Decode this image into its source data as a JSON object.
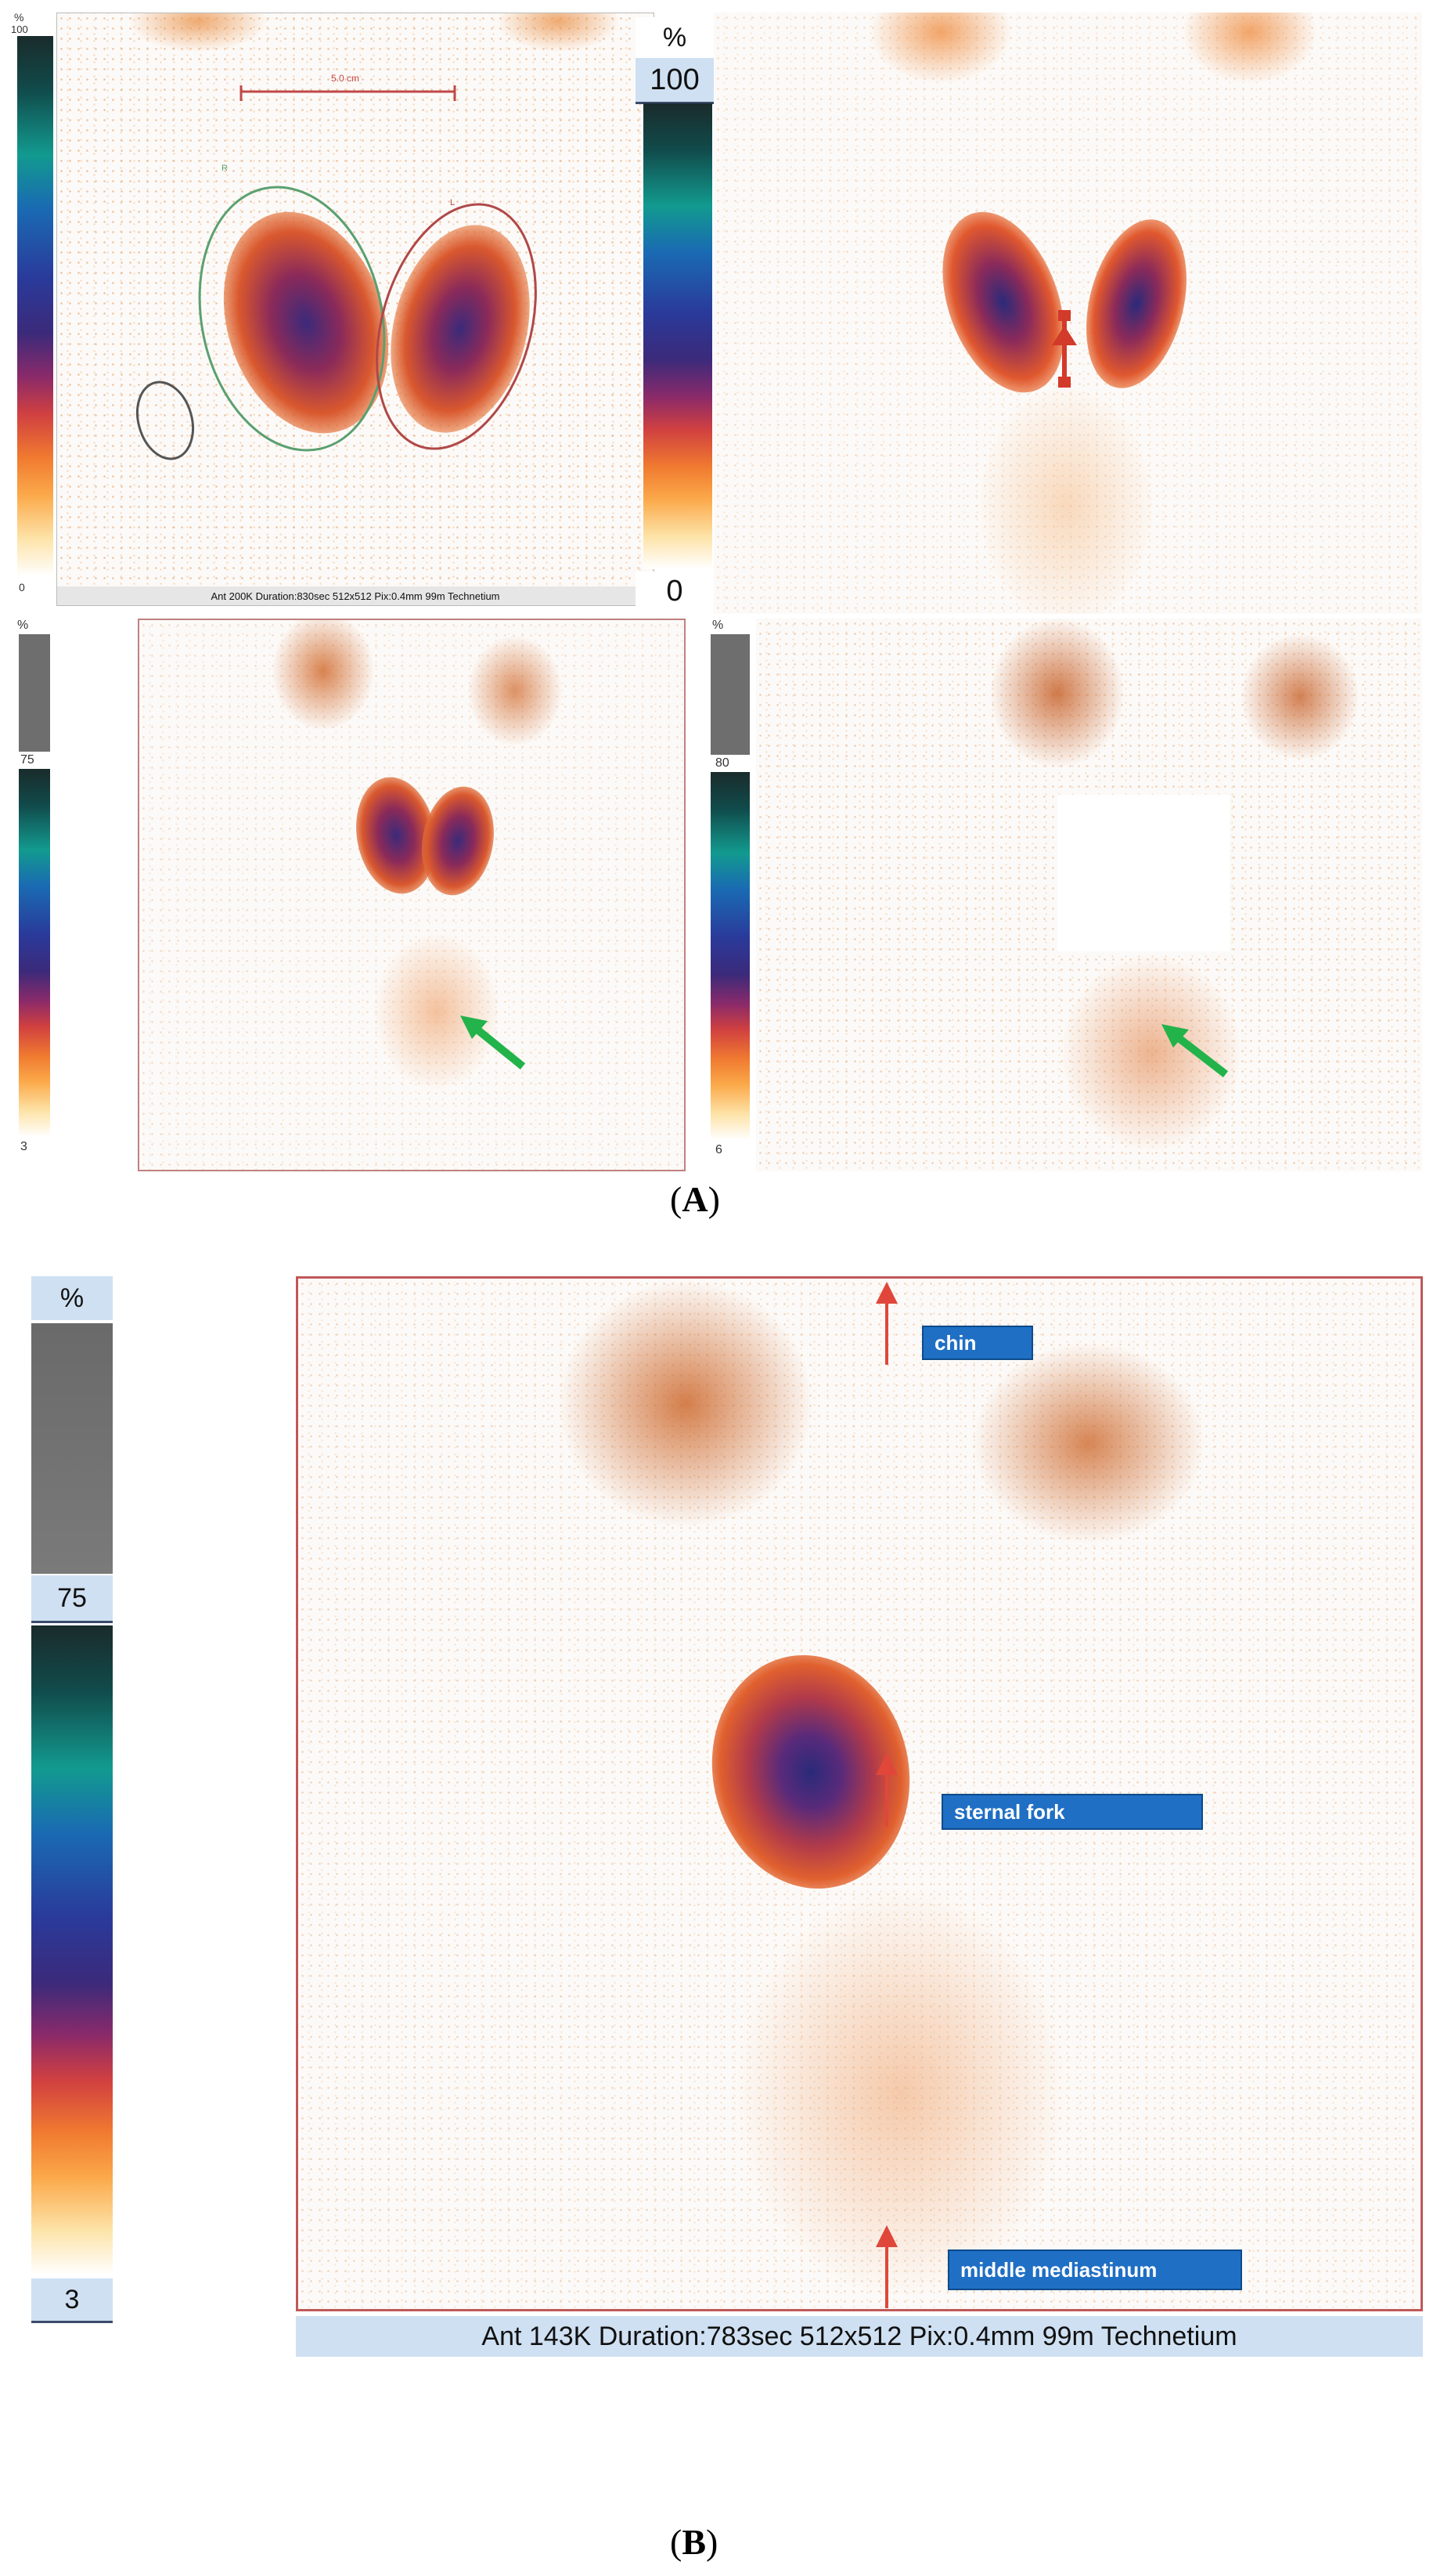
{
  "panel_a": {
    "caption": "A",
    "top_left": {
      "scale_top": "100",
      "scale_bottom": "0",
      "percent": "%",
      "footer": "Ant 200K Duration:830sec 512x512 Pix:0.4mm 99m Technetium",
      "ruler_label": "5.0 cm",
      "lobe_labels": [
        "R",
        "L"
      ]
    },
    "top_right": {
      "percent": "%",
      "scale_top": "100",
      "scale_bottom": "0"
    },
    "bottom_left": {
      "percent": "%",
      "scale_mid": "75",
      "scale_bottom": "3"
    },
    "bottom_right": {
      "percent": "%",
      "scale_mid": "80",
      "scale_bottom": "6"
    }
  },
  "panel_b": {
    "caption": "B",
    "percent": "%",
    "scale_mid": "75",
    "scale_bottom": "3",
    "labels": {
      "chin": "chin",
      "sternal_fork": "sternal fork",
      "middle_mediastinum": "middle mediastinum"
    },
    "footer": "Ant 143K Duration:783sec 512x512 Pix:0.4mm 99m Technetium"
  },
  "colors": {
    "arrow_red": "#e0473a",
    "arrow_green": "#22b34a",
    "label_blue": "#1f6fc4"
  }
}
